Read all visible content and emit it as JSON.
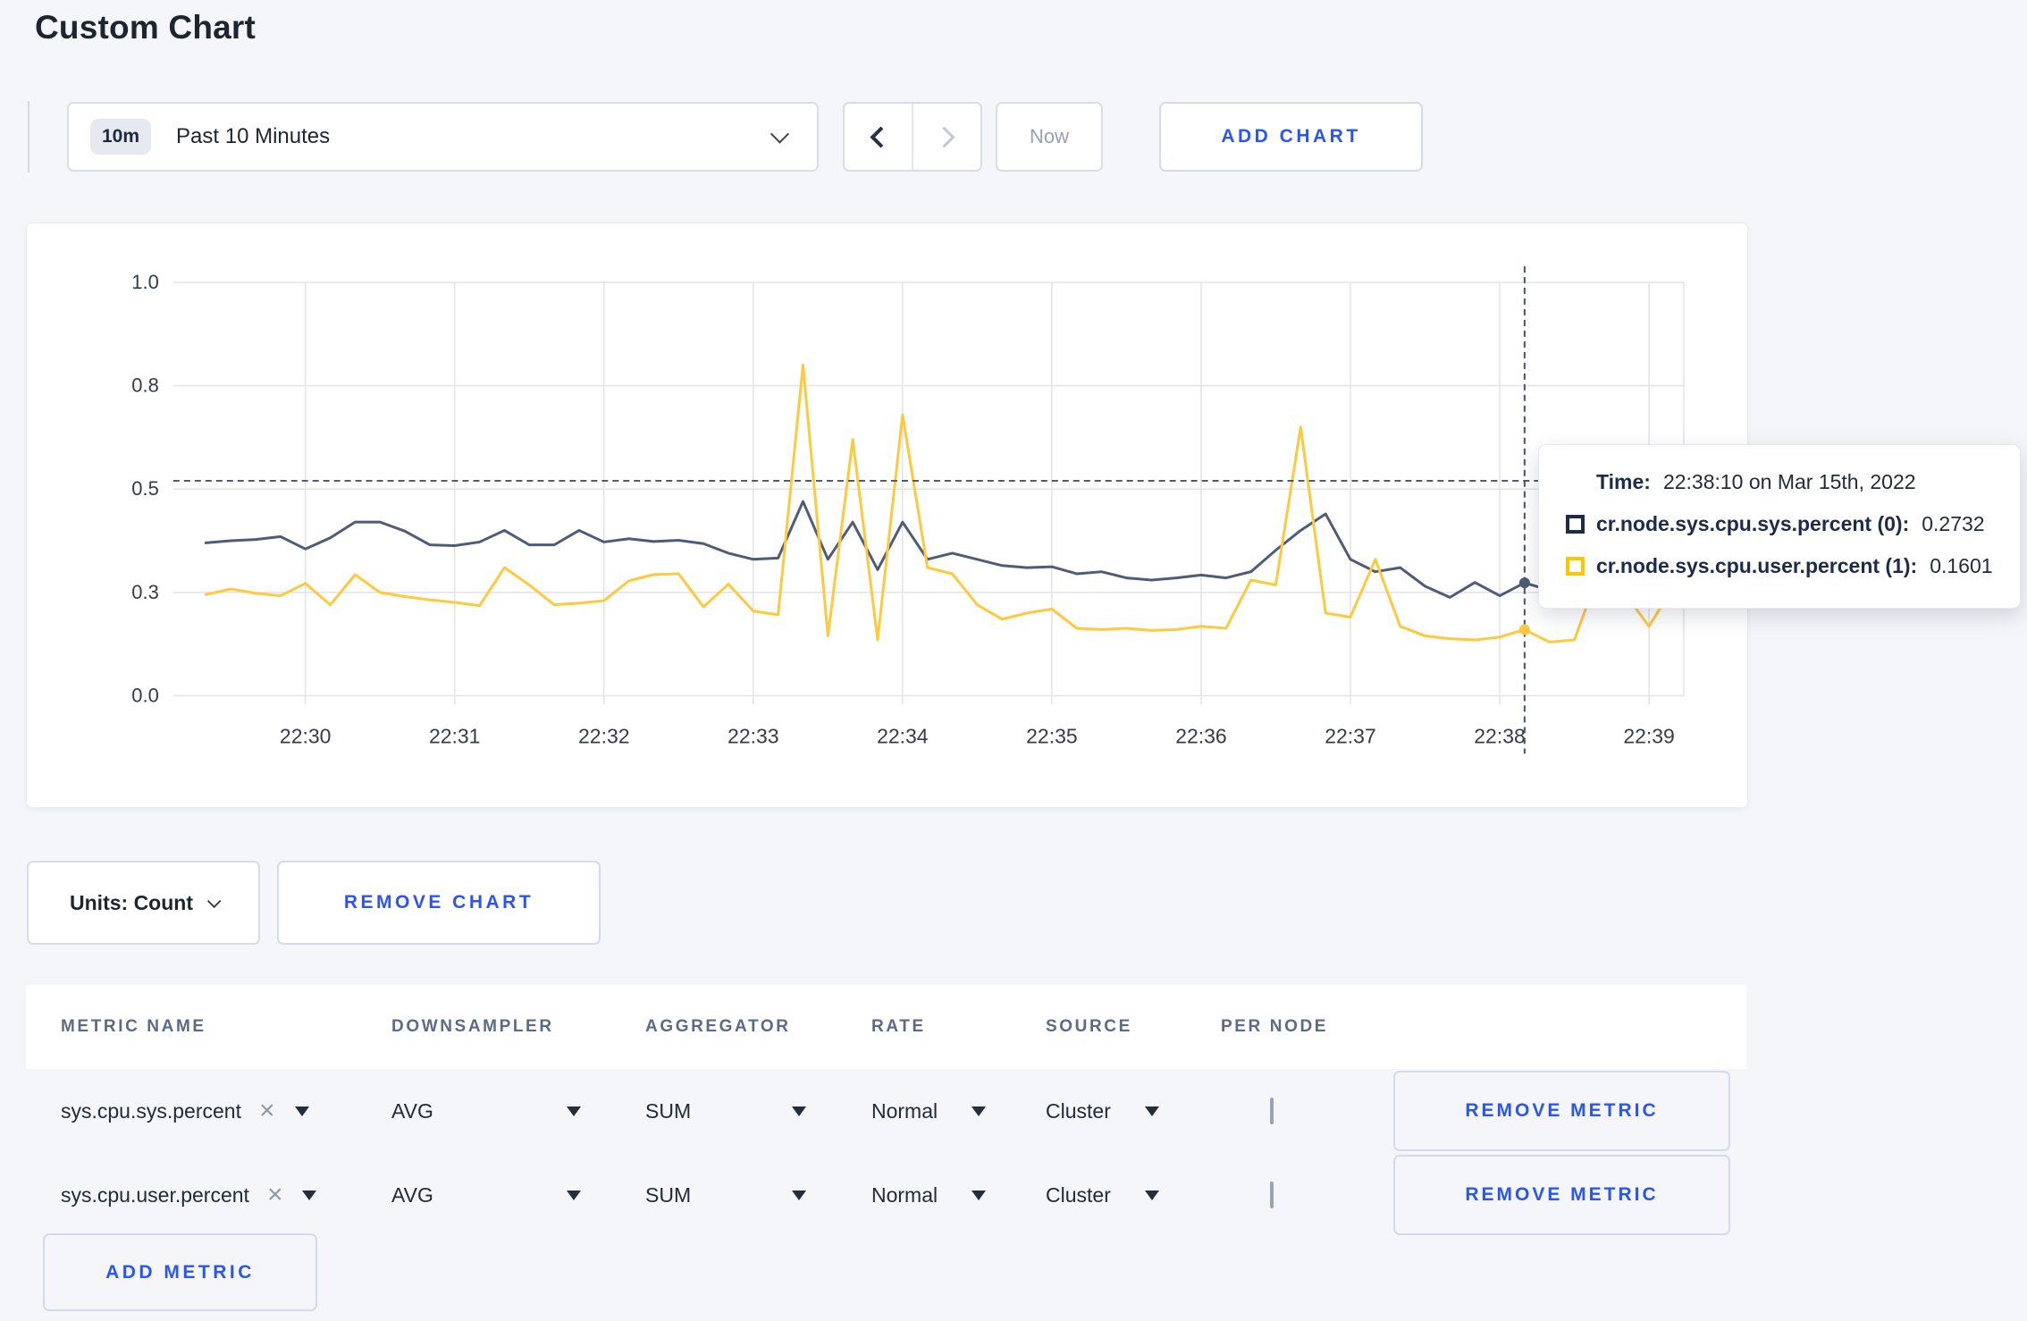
{
  "title": "Custom Chart",
  "toolbar": {
    "time_range_badge": "10m",
    "time_range_label": "Past 10 Minutes",
    "now_label": "Now",
    "add_chart_label": "ADD CHART"
  },
  "tooltip": {
    "time_label": "Time:",
    "time_value": "22:38:10 on Mar 15th, 2022",
    "series": [
      {
        "label": "cr.node.sys.cpu.sys.percent (0):",
        "value": "0.2732",
        "swatch_color": "#1c2b4c"
      },
      {
        "label": "cr.node.sys.cpu.user.percent (1):",
        "value": "0.1601",
        "swatch_color": "#ffc600"
      }
    ]
  },
  "units": {
    "label": "Units: Count",
    "remove_chart_label": "REMOVE CHART"
  },
  "metrics_table": {
    "headers": [
      "METRIC NAME",
      "DOWNSAMPLER",
      "AGGREGATOR",
      "RATE",
      "SOURCE",
      "PER NODE"
    ],
    "rows": [
      {
        "name": "sys.cpu.sys.percent",
        "downsampler": "AVG",
        "aggregator": "SUM",
        "rate": "Normal",
        "source": "Cluster",
        "per_node_checked": false,
        "remove_label": "REMOVE METRIC"
      },
      {
        "name": "sys.cpu.user.percent",
        "downsampler": "AVG",
        "aggregator": "SUM",
        "rate": "Normal",
        "source": "Cluster",
        "per_node_checked": false,
        "remove_label": "REMOVE METRIC"
      }
    ],
    "add_metric_label": "ADD METRIC"
  },
  "chart_data": {
    "type": "line",
    "ylim": [
      0,
      1
    ],
    "grid": true,
    "y_ticks": [
      {
        "v": 1.0,
        "label": "1.0"
      },
      {
        "v": 0.75,
        "label": "0.8"
      },
      {
        "v": 0.5,
        "label": "0.5"
      },
      {
        "v": 0.25,
        "label": "0.3"
      },
      {
        "v": 0.0,
        "label": "0.0"
      }
    ],
    "x_ticks": [
      {
        "t": 40,
        "label": "22:30"
      },
      {
        "t": 100,
        "label": "22:31"
      },
      {
        "t": 160,
        "label": "22:32"
      },
      {
        "t": 220,
        "label": "22:33"
      },
      {
        "t": 280,
        "label": "22:34"
      },
      {
        "t": 340,
        "label": "22:35"
      },
      {
        "t": 400,
        "label": "22:36"
      },
      {
        "t": 460,
        "label": "22:37"
      },
      {
        "t": 520,
        "label": "22:38"
      },
      {
        "t": 580,
        "label": "22:39"
      }
    ],
    "t_start_label": "22:29:20",
    "t_step_seconds": 10,
    "series": [
      {
        "name": "cr.node.sys.cpu.sys.percent (0)",
        "color": "#4e5c78",
        "values": [
          0.37,
          0.375,
          0.378,
          0.385,
          0.355,
          0.382,
          0.42,
          0.42,
          0.398,
          0.365,
          0.363,
          0.372,
          0.4,
          0.365,
          0.365,
          0.4,
          0.372,
          0.38,
          0.373,
          0.376,
          0.368,
          0.345,
          0.33,
          0.333,
          0.47,
          0.33,
          0.42,
          0.305,
          0.42,
          0.33,
          0.345,
          0.33,
          0.315,
          0.31,
          0.312,
          0.295,
          0.3,
          0.285,
          0.28,
          0.285,
          0.292,
          0.285,
          0.3,
          0.352,
          0.4,
          0.44,
          0.33,
          0.3,
          0.31,
          0.265,
          0.238,
          0.274,
          0.242,
          0.2732,
          0.255,
          0.265,
          0.252,
          0.268,
          0.255,
          0.265,
          0.258
        ]
      },
      {
        "name": "cr.node.sys.cpu.user.percent (1)",
        "color": "#ffc93d",
        "values": [
          0.245,
          0.258,
          0.248,
          0.242,
          0.272,
          0.22,
          0.293,
          0.25,
          0.24,
          0.232,
          0.226,
          0.218,
          0.31,
          0.268,
          0.22,
          0.224,
          0.23,
          0.278,
          0.293,
          0.295,
          0.215,
          0.27,
          0.205,
          0.196,
          0.8,
          0.145,
          0.62,
          0.135,
          0.68,
          0.31,
          0.295,
          0.22,
          0.185,
          0.2,
          0.21,
          0.163,
          0.16,
          0.163,
          0.158,
          0.16,
          0.168,
          0.163,
          0.28,
          0.268,
          0.65,
          0.2,
          0.19,
          0.33,
          0.168,
          0.145,
          0.138,
          0.135,
          0.142,
          0.1601,
          0.13,
          0.135,
          0.3,
          0.25,
          0.168,
          0.265,
          0.255
        ]
      }
    ],
    "hover": {
      "index": 53,
      "time": "22:38:10",
      "crosshair_value": 0.52,
      "point_values": [
        0.2732,
        0.1601
      ],
      "crosshair_color": "#47536e"
    },
    "legend_position": "tooltip",
    "colors": {
      "gridline": "#e3e5ea",
      "axis_text": "#343b49"
    }
  }
}
